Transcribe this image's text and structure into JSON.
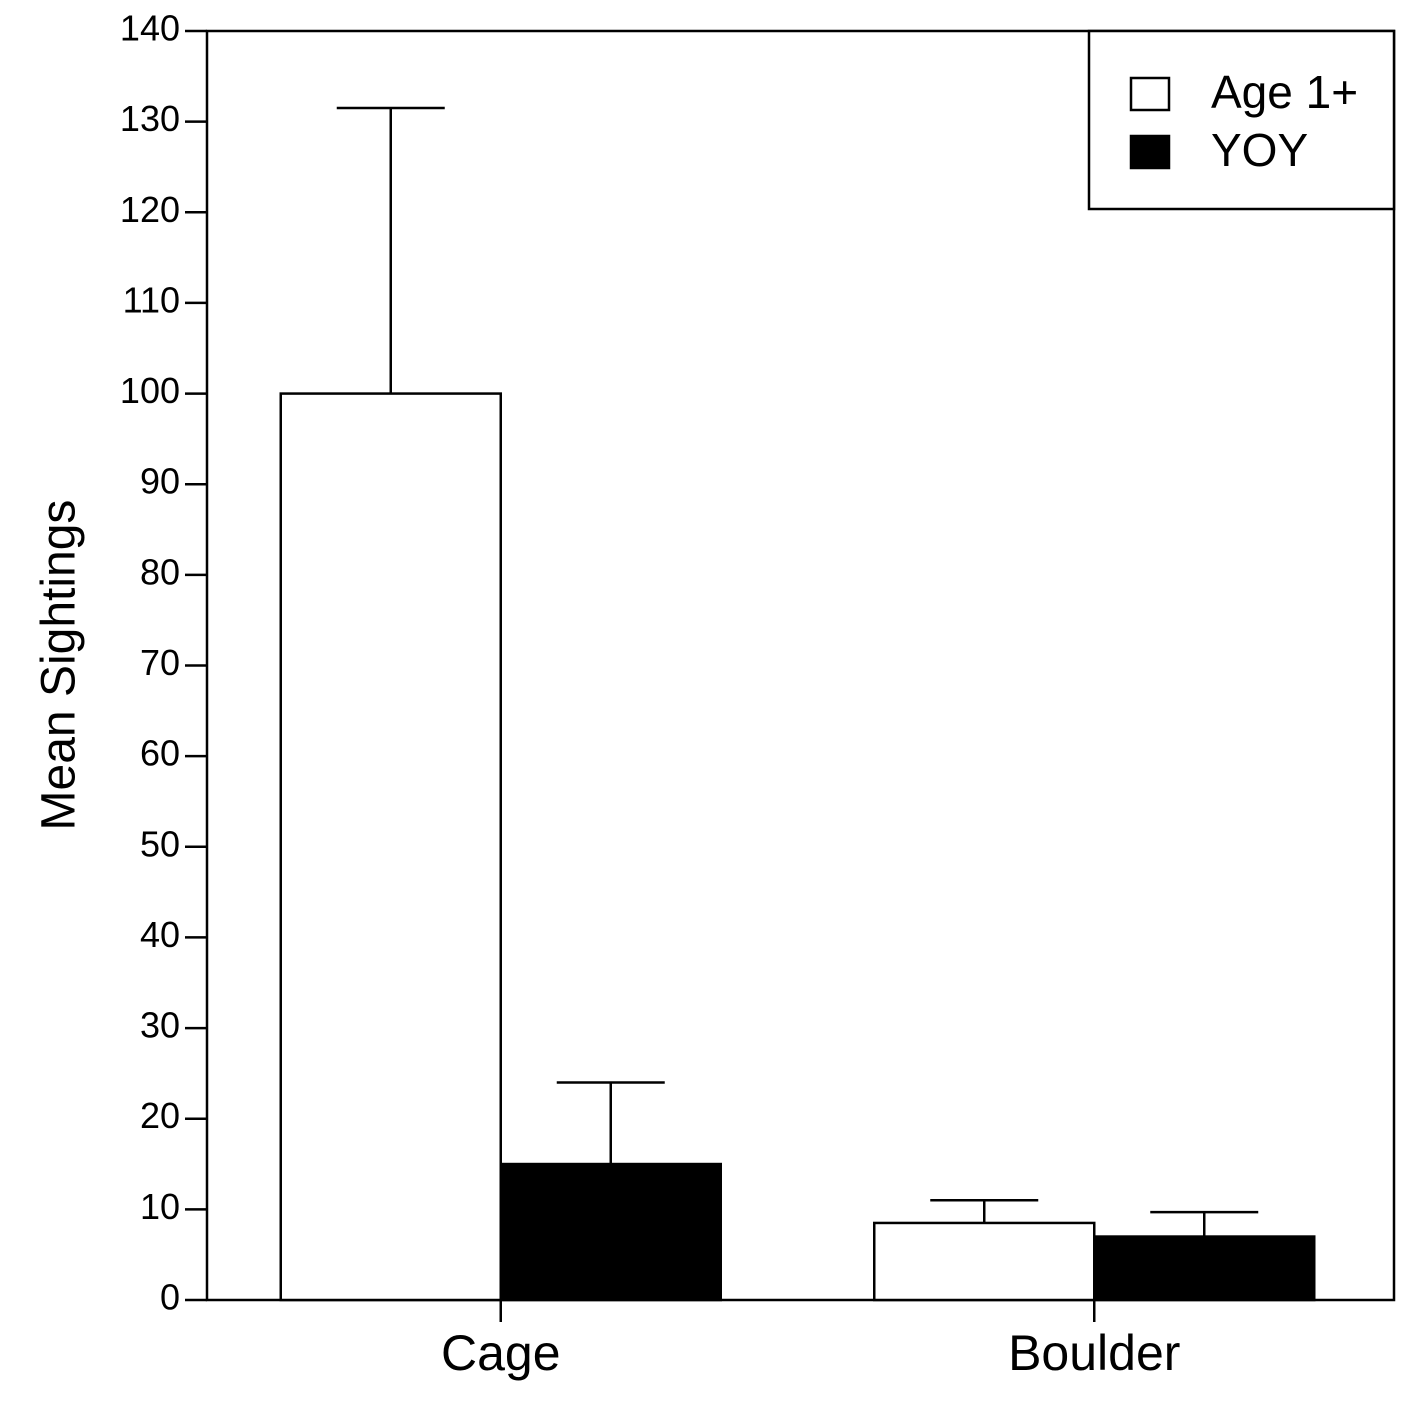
{
  "chart_data": {
    "type": "bar",
    "categories": [
      "Cage",
      "Boulder"
    ],
    "series": [
      {
        "name": "Age 1+",
        "values": [
          100,
          8.5
        ],
        "error_upper": [
          131.5,
          11
        ],
        "color": "#ffffff"
      },
      {
        "name": "YOY",
        "values": [
          15,
          7
        ],
        "error_upper": [
          24,
          9.7
        ],
        "color": "#000000"
      }
    ],
    "title": "",
    "xlabel": "",
    "ylabel": "Mean Sightings",
    "ylim": [
      0,
      140
    ],
    "yticks": [
      0,
      10,
      20,
      30,
      40,
      50,
      60,
      70,
      80,
      90,
      100,
      110,
      120,
      130,
      140
    ],
    "grid": false,
    "legend_position": "top-right"
  }
}
